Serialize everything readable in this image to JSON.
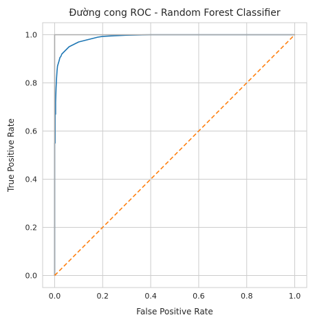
{
  "chart_data": {
    "type": "line",
    "title": "Đường cong ROC - Random Forest Classifier",
    "xlabel": "False Positive Rate",
    "ylabel": "True Positive Rate",
    "xlim": [
      -0.05,
      1.05
    ],
    "ylim": [
      -0.05,
      1.05
    ],
    "xticks": [
      "0.0",
      "0.2",
      "0.4",
      "0.6",
      "0.8",
      "1.0"
    ],
    "yticks": [
      "0.0",
      "0.2",
      "0.4",
      "0.6",
      "0.8",
      "1.0"
    ],
    "grid": true,
    "series": [
      {
        "color": "#1f77b4",
        "style": "solid",
        "x": [
          0,
          0,
          0.002,
          0.002,
          0.004,
          0.004,
          0.006,
          0.008,
          0.01,
          0.012,
          0.015,
          0.018,
          0.022,
          0.026,
          0.03,
          0.035,
          0.04,
          0.05,
          0.06,
          0.07,
          0.08,
          0.09,
          0.1,
          0.12,
          0.14,
          0.16,
          0.18,
          0.2,
          0.25,
          0.3,
          0.4,
          0.6,
          0.8,
          1.0
        ],
        "y": [
          0,
          0.55,
          0.55,
          0.67,
          0.67,
          0.72,
          0.78,
          0.82,
          0.85,
          0.87,
          0.88,
          0.89,
          0.905,
          0.91,
          0.92,
          0.925,
          0.93,
          0.94,
          0.95,
          0.955,
          0.96,
          0.965,
          0.97,
          0.975,
          0.98,
          0.985,
          0.99,
          0.993,
          0.996,
          0.998,
          1.0,
          1.0,
          1.0,
          1.0
        ]
      },
      {
        "color": "#aaaaaa",
        "style": "solid",
        "x": [
          0,
          0,
          1
        ],
        "y": [
          0,
          1,
          1
        ]
      },
      {
        "color": "#ff7f0e",
        "style": "dashed",
        "x": [
          0,
          1
        ],
        "y": [
          0,
          1
        ]
      }
    ]
  }
}
